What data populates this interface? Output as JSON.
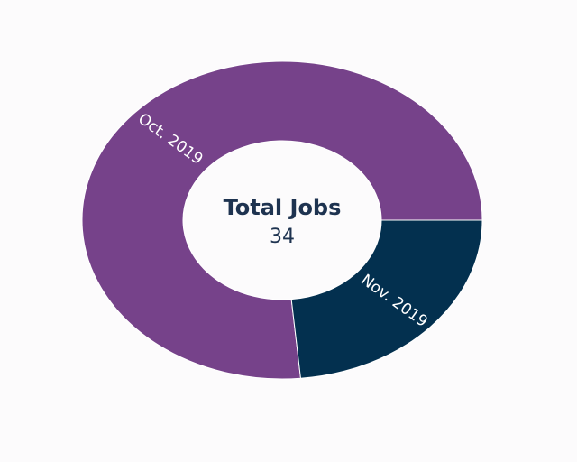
{
  "chart_data": {
    "type": "pie",
    "donut": true,
    "categories": [
      "Oct. 2019",
      "Nov. 2019"
    ],
    "values": [
      26,
      8
    ],
    "colors": [
      "#76428a",
      "#03304f"
    ],
    "center": {
      "title": "Total Jobs",
      "value": "34"
    },
    "legend": "none"
  }
}
